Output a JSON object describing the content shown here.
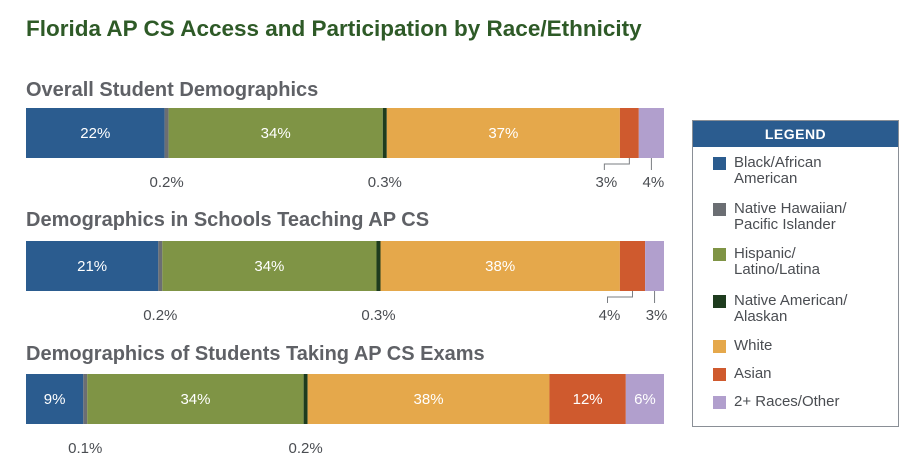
{
  "title": "Florida AP CS Access and Participation by Race/Ethnicity",
  "legend": {
    "header": "LEGEND",
    "items": [
      {
        "label": "Black/African\nAmerican",
        "color": "#2b5c8f"
      },
      {
        "label": "Native Hawaiian/\nPacific Islander",
        "color": "#6b6e73"
      },
      {
        "label": "Hispanic/\nLatino/Latina",
        "color": "#7f9445"
      },
      {
        "label": "Native American/\nAlaskan",
        "color": "#1e3c1e"
      },
      {
        "label": "White",
        "color": "#e5a84b"
      },
      {
        "label": "Asian",
        "color": "#cf5a2e"
      },
      {
        "label": "2+ Races/Other",
        "color": "#b19fcd"
      }
    ]
  },
  "chart_data": [
    {
      "type": "bar",
      "orientation": "horizontal-stacked",
      "title": "Overall Student Demographics",
      "categories": [
        "Black/African American",
        "Native Hawaiian/Pacific Islander",
        "Hispanic/Latino/Latina",
        "Native American/Alaskan",
        "White",
        "Asian",
        "2+ Races/Other"
      ],
      "values": [
        22,
        0.2,
        34,
        0.3,
        37,
        3,
        4
      ],
      "labels": [
        "22%",
        "0.2%",
        "34%",
        "0.3%",
        "37%",
        "3%",
        "4%"
      ]
    },
    {
      "type": "bar",
      "orientation": "horizontal-stacked",
      "title": "Demographics in Schools Teaching AP CS",
      "categories": [
        "Black/African American",
        "Native Hawaiian/Pacific Islander",
        "Hispanic/Latino/Latina",
        "Native American/Alaskan",
        "White",
        "Asian",
        "2+ Races/Other"
      ],
      "values": [
        21,
        0.2,
        34,
        0.3,
        38,
        4,
        3
      ],
      "labels": [
        "21%",
        "0.2%",
        "34%",
        "0.3%",
        "38%",
        "4%",
        "3%"
      ]
    },
    {
      "type": "bar",
      "orientation": "horizontal-stacked",
      "title": "Demographics of Students Taking AP CS Exams",
      "categories": [
        "Black/African American",
        "Native Hawaiian/Pacific Islander",
        "Hispanic/Latino/Latina",
        "Native American/Alaskan",
        "White",
        "Asian",
        "2+ Races/Other"
      ],
      "values": [
        9,
        0.1,
        34,
        0.2,
        38,
        12,
        6
      ],
      "labels": [
        "9%",
        "0.1%",
        "34%",
        "0.2%",
        "38%",
        "12%",
        "6%"
      ]
    }
  ]
}
